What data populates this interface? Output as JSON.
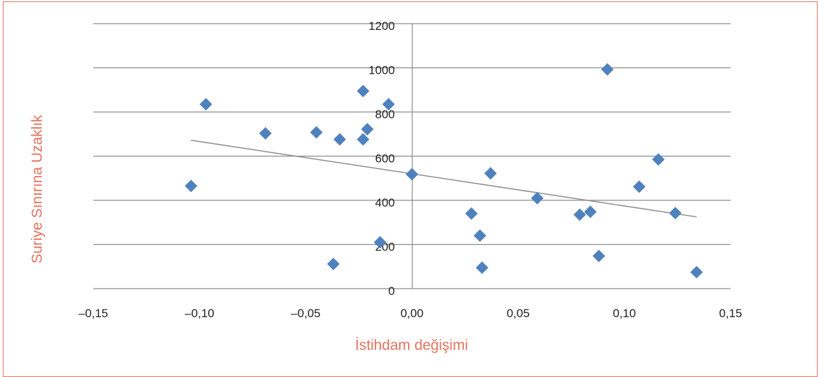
{
  "chart_data": {
    "type": "scatter",
    "title": "",
    "xlabel": "İstihdam değişimi",
    "ylabel": "Suriye Sınırına Uzaklık",
    "xlim": [
      -0.15,
      0.15
    ],
    "ylim": [
      0,
      1200
    ],
    "x_ticks": [
      "-0,15",
      "-0,10",
      "-0,05",
      "0,00",
      "0,05",
      "0,10",
      "0,15"
    ],
    "y_ticks": [
      "0",
      "200",
      "400",
      "600",
      "800",
      "1000",
      "1200"
    ],
    "grid": "horizontal",
    "legend": "none",
    "marker": "diamond",
    "point_color": "#4f81bd",
    "trendline_color": "#8c8c8c",
    "points": [
      {
        "x": -0.104,
        "y": 465
      },
      {
        "x": -0.097,
        "y": 835
      },
      {
        "x": -0.069,
        "y": 703
      },
      {
        "x": -0.045,
        "y": 708
      },
      {
        "x": -0.037,
        "y": 112
      },
      {
        "x": -0.034,
        "y": 676
      },
      {
        "x": -0.023,
        "y": 895
      },
      {
        "x": -0.023,
        "y": 676
      },
      {
        "x": -0.021,
        "y": 722
      },
      {
        "x": -0.015,
        "y": 210
      },
      {
        "x": -0.011,
        "y": 835
      },
      {
        "x": 0.0,
        "y": 518
      },
      {
        "x": 0.028,
        "y": 340
      },
      {
        "x": 0.032,
        "y": 240
      },
      {
        "x": 0.033,
        "y": 95
      },
      {
        "x": 0.037,
        "y": 522
      },
      {
        "x": 0.059,
        "y": 410
      },
      {
        "x": 0.079,
        "y": 335
      },
      {
        "x": 0.084,
        "y": 348
      },
      {
        "x": 0.088,
        "y": 148
      },
      {
        "x": 0.092,
        "y": 993
      },
      {
        "x": 0.107,
        "y": 462
      },
      {
        "x": 0.116,
        "y": 585
      },
      {
        "x": 0.124,
        "y": 342
      },
      {
        "x": 0.134,
        "y": 75
      }
    ],
    "trendline": {
      "x": [
        -0.104,
        0.134
      ],
      "y": [
        672,
        325
      ]
    }
  }
}
